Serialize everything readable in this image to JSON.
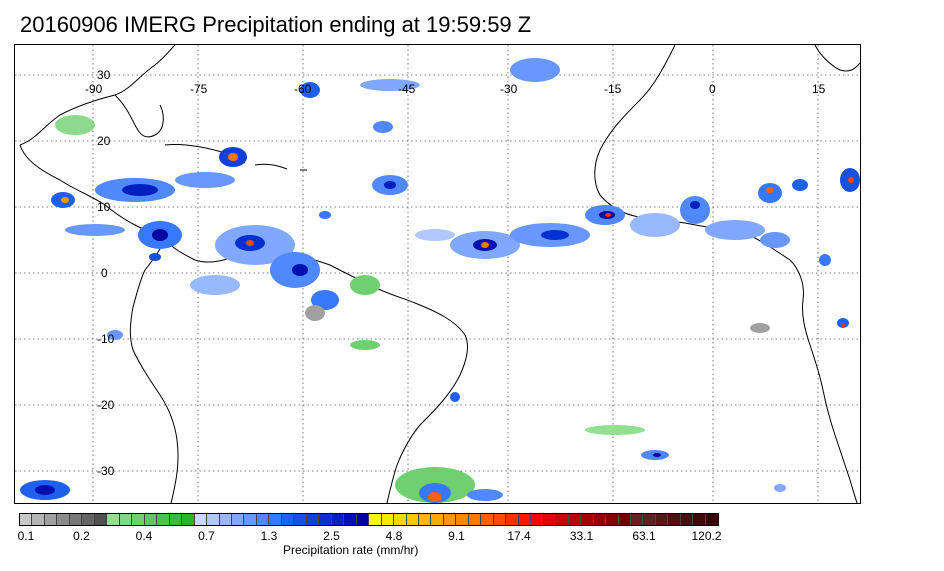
{
  "title": "20160906 IMERG Precipitation ending at 19:59:59 Z",
  "map": {
    "lon_labels": [
      "-90",
      "-75",
      "-60",
      "-45",
      "-30",
      "-15",
      "0",
      "15"
    ],
    "lat_labels": [
      "30",
      "20",
      "10",
      "0",
      "-10",
      "-20",
      "-30"
    ],
    "gridlines": "dotted",
    "coastline_color": "#000000"
  },
  "colorbar": {
    "label": "Precipitation rate (mm/hr)",
    "tick_labels": [
      "0.1",
      "0.2",
      "0.4",
      "0.7",
      "1.3",
      "2.5",
      "4.8",
      "9.1",
      "17.4",
      "33.1",
      "63.1",
      "120.2"
    ],
    "colors": [
      "#c8c8c8",
      "#b4b4b4",
      "#a0a0a0",
      "#8c8c8c",
      "#787878",
      "#646464",
      "#505050",
      "#90e090",
      "#80d880",
      "#70d070",
      "#60c860",
      "#50c050",
      "#40b840",
      "#30b030",
      "#c8d8ff",
      "#b0c8ff",
      "#98b8ff",
      "#80a8ff",
      "#6898ff",
      "#5088ff",
      "#3878ff",
      "#2060f0",
      "#1850e0",
      "#1040d8",
      "#0830d0",
      "#0020c0",
      "#0010b0",
      "#0000a0",
      "#ffff00",
      "#ffe800",
      "#ffd800",
      "#ffc800",
      "#ffb800",
      "#ffa800",
      "#ff9800",
      "#ff8800",
      "#ff7800",
      "#ff6000",
      "#ff4800",
      "#ff3000",
      "#ff1800",
      "#ff0000",
      "#e00000",
      "#c80000",
      "#b40000",
      "#a00000",
      "#900000",
      "#800000",
      "#700000",
      "#682020",
      "#602020",
      "#581818",
      "#501010",
      "#481010",
      "#400808",
      "#380000"
    ]
  }
}
